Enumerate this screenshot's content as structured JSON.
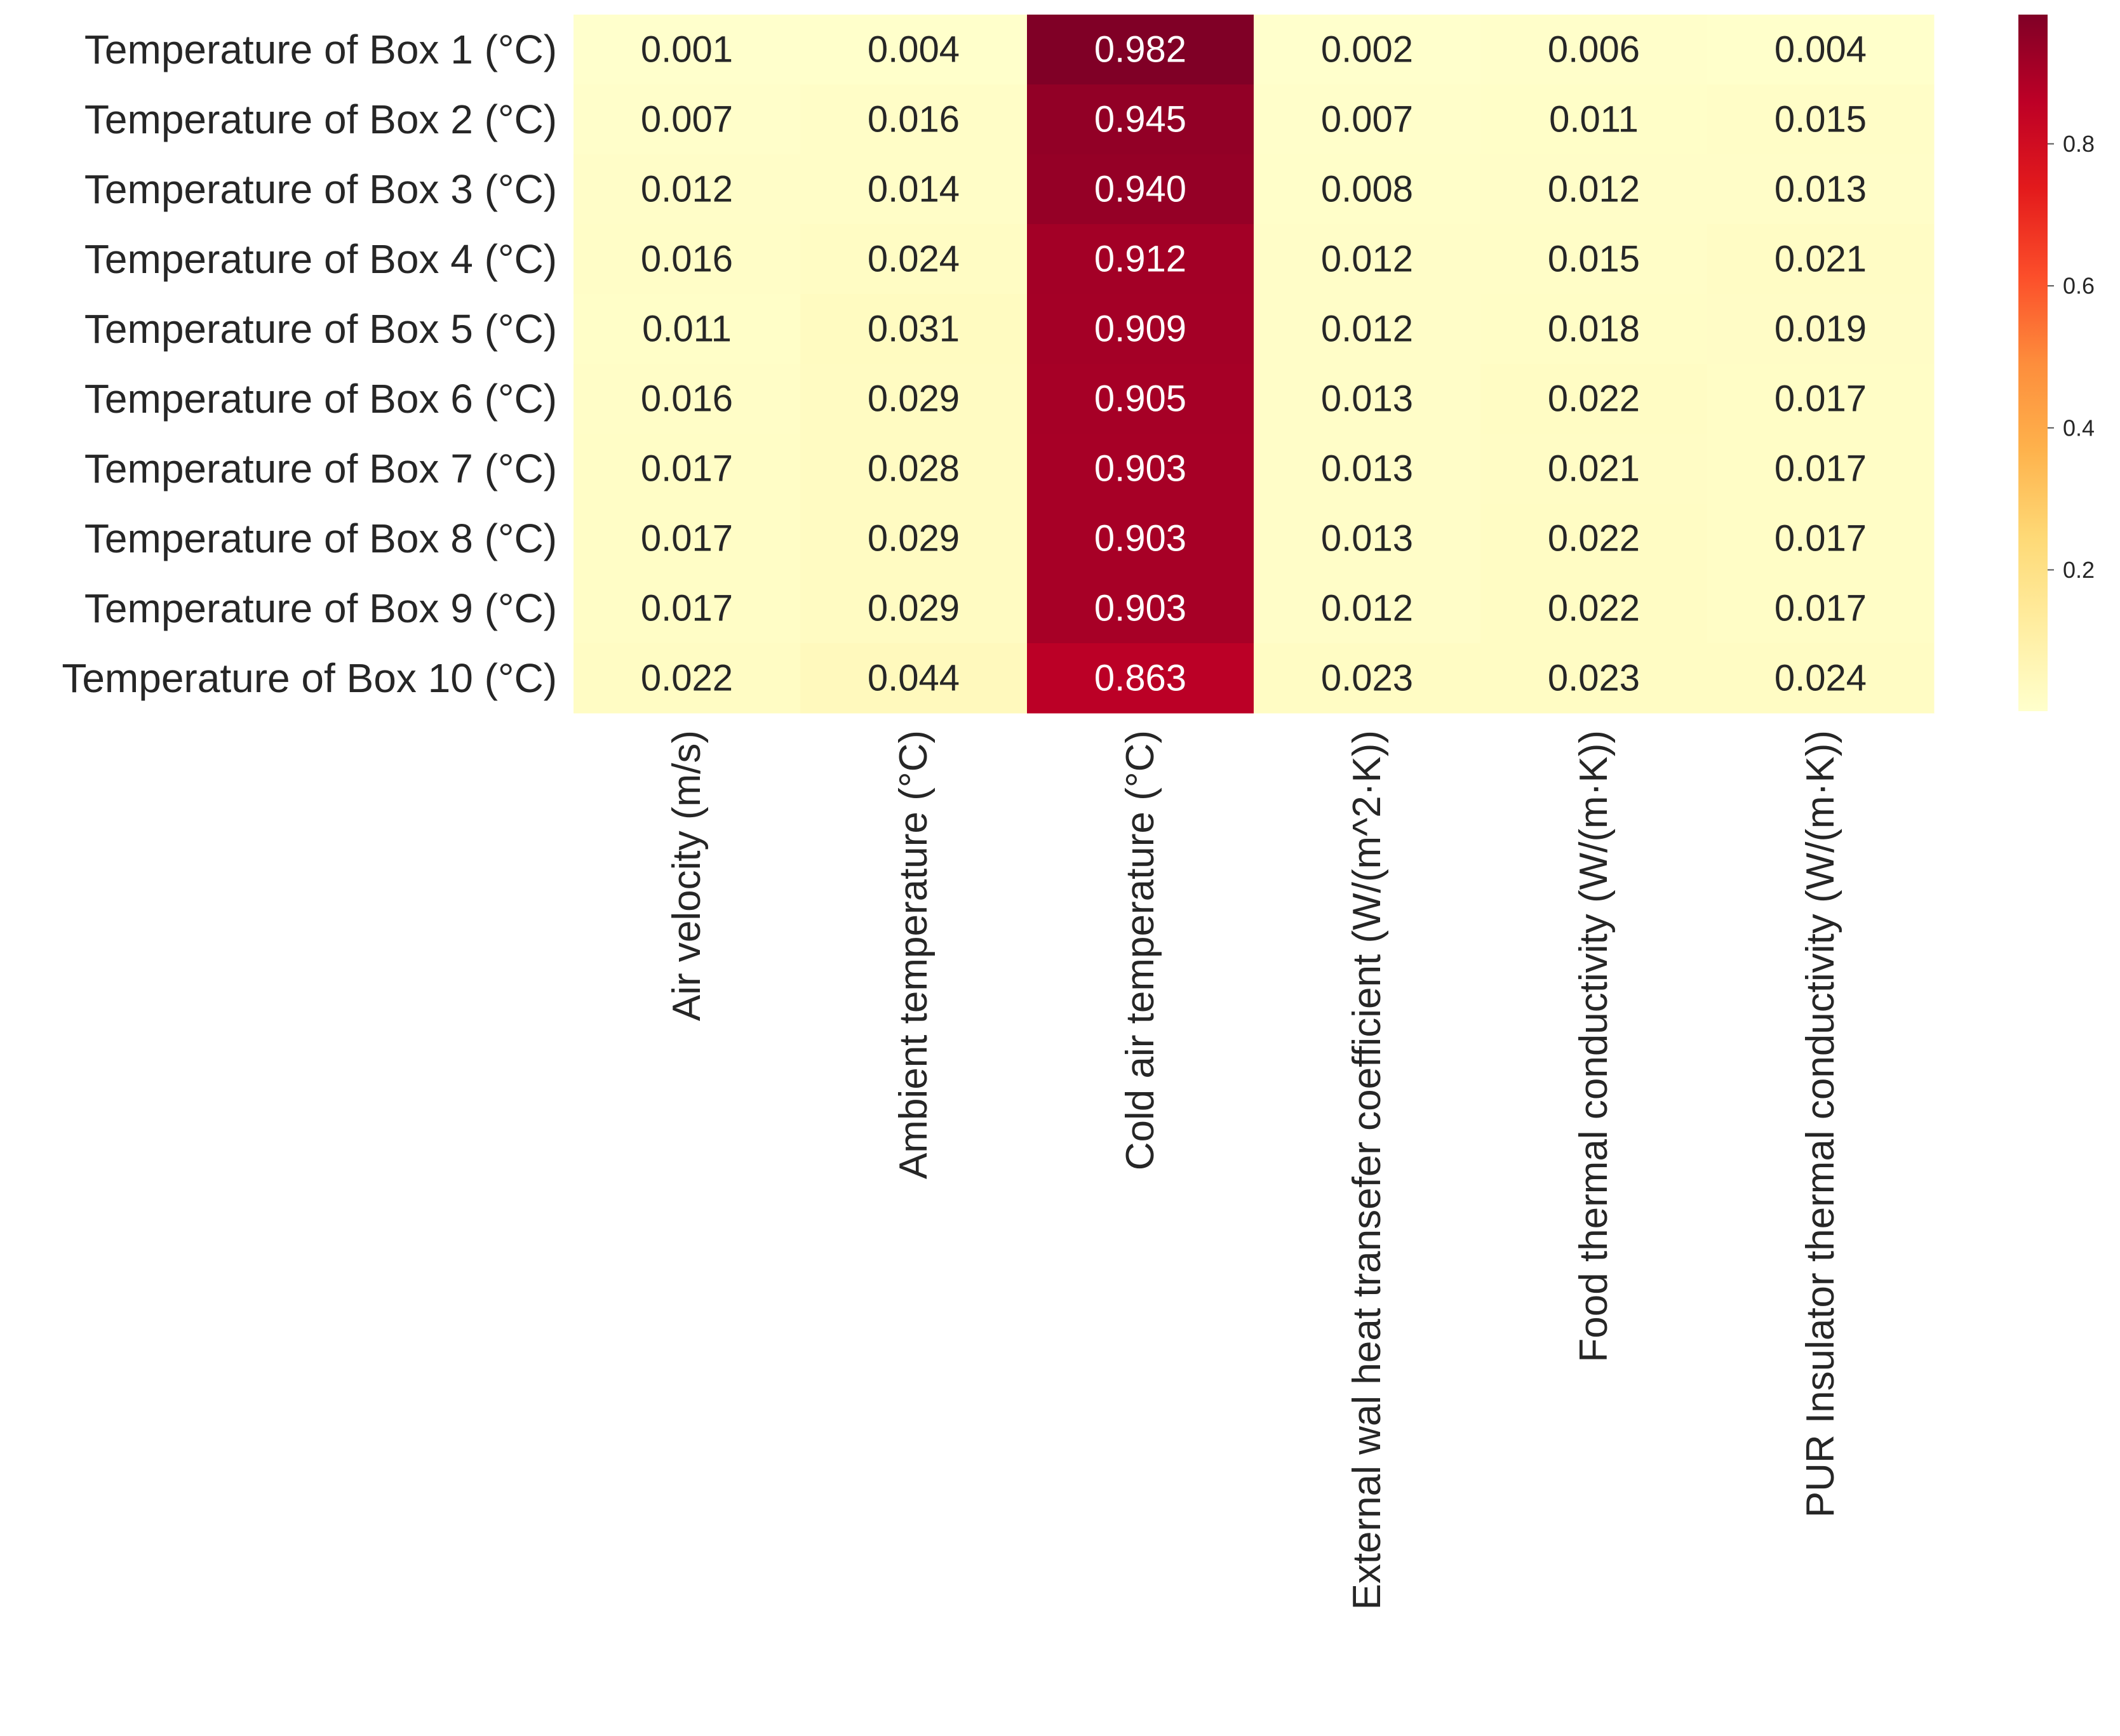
{
  "chart_data": {
    "type": "heatmap",
    "rows": [
      "Temperature of Box 1 (°C)",
      "Temperature of Box 2 (°C)",
      "Temperature of Box 3 (°C)",
      "Temperature of Box 4 (°C)",
      "Temperature of Box 5 (°C)",
      "Temperature of Box 6 (°C)",
      "Temperature of Box 7 (°C)",
      "Temperature of Box 8 (°C)",
      "Temperature of Box 9 (°C)",
      "Temperature of Box 10 (°C)"
    ],
    "columns": [
      "Air velocity (m/s)",
      "Ambient temperature (°C)",
      "Cold air temperature (°C)",
      "External wal heat transefer coefficient (W/(m^2·K))",
      "Food thermal conductivity (W/(m·K))",
      "PUR Insulator thermal conductivity  (W/(m·K))"
    ],
    "values": [
      [
        0.001,
        0.004,
        0.982,
        0.002,
        0.006,
        0.004
      ],
      [
        0.007,
        0.016,
        0.945,
        0.007,
        0.011,
        0.015
      ],
      [
        0.012,
        0.014,
        0.94,
        0.008,
        0.012,
        0.013
      ],
      [
        0.016,
        0.024,
        0.912,
        0.012,
        0.015,
        0.021
      ],
      [
        0.011,
        0.031,
        0.909,
        0.012,
        0.018,
        0.019
      ],
      [
        0.016,
        0.029,
        0.905,
        0.013,
        0.022,
        0.017
      ],
      [
        0.017,
        0.028,
        0.903,
        0.013,
        0.021,
        0.017
      ],
      [
        0.017,
        0.029,
        0.903,
        0.013,
        0.022,
        0.017
      ],
      [
        0.017,
        0.029,
        0.903,
        0.012,
        0.022,
        0.017
      ],
      [
        0.022,
        0.044,
        0.863,
        0.023,
        0.023,
        0.024
      ]
    ],
    "value_format": "0.000",
    "colorbar": {
      "ticks": [
        "0.2",
        "0.4",
        "0.6",
        "0.8"
      ],
      "tick_values": [
        0.2,
        0.4,
        0.6,
        0.8
      ],
      "range": [
        0.001,
        0.982
      ],
      "colormap": [
        "#ffffcc",
        "#ffeda0",
        "#fed976",
        "#feb24c",
        "#fd8d3c",
        "#fc4e2a",
        "#e31a1c",
        "#bd0026",
        "#800026"
      ]
    },
    "annotation_colors": {
      "dark_text": "#262626",
      "light_text": "#ffffff"
    }
  }
}
